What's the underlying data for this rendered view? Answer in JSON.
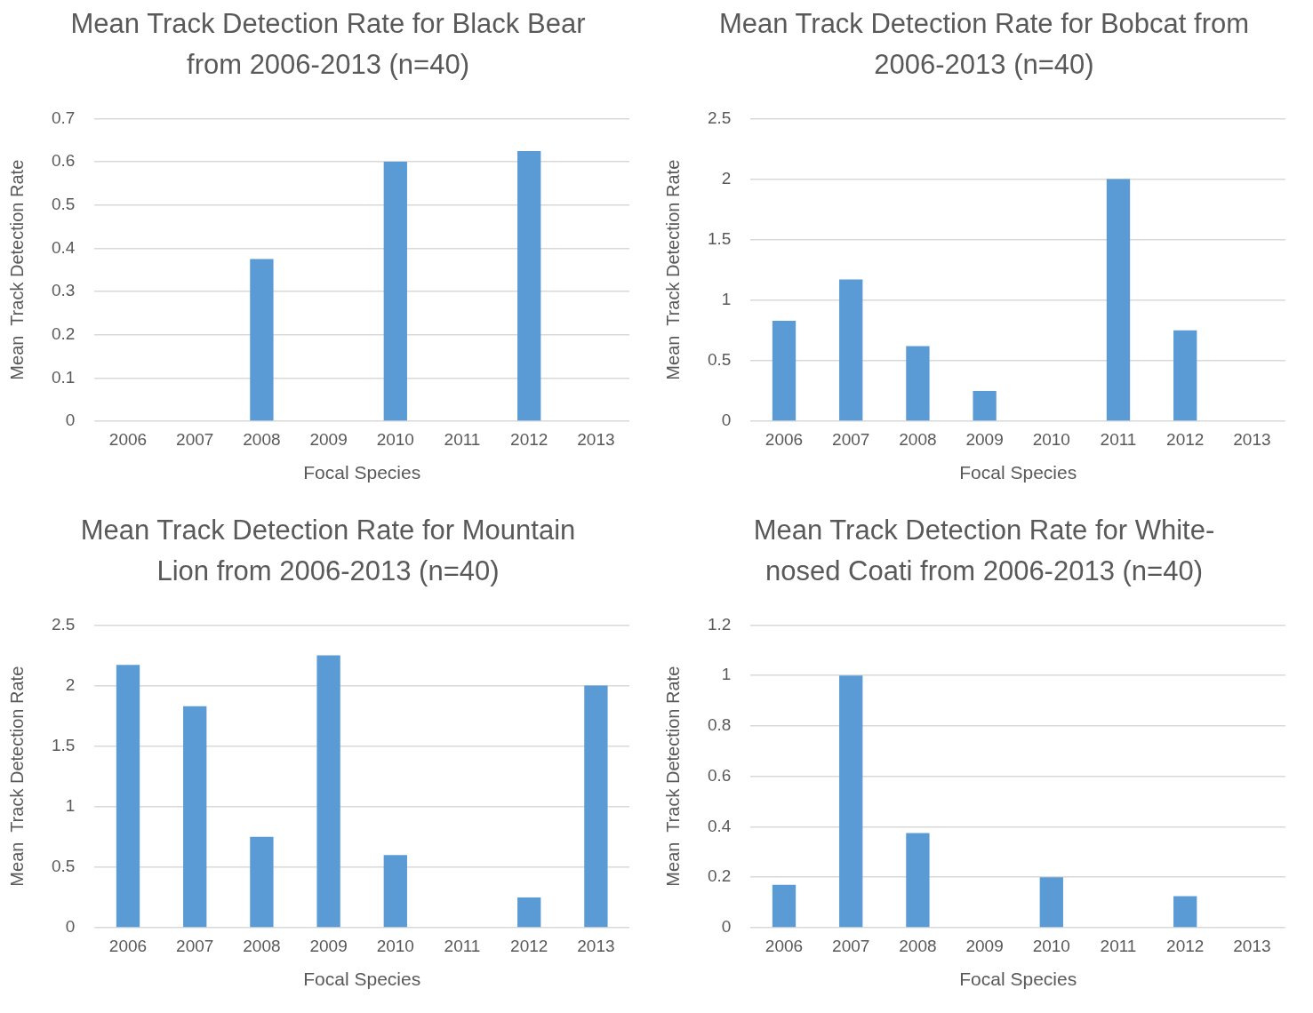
{
  "chart_data": [
    {
      "type": "bar",
      "title": "Mean Track Detection Rate for Black Bear from 2006-2013 (n=40)",
      "xlabel": "Focal Species",
      "ylabel": "Mean  Track Detection Rate",
      "categories": [
        "2006",
        "2007",
        "2008",
        "2009",
        "2010",
        "2011",
        "2012",
        "2013"
      ],
      "values": [
        0,
        0,
        0.375,
        0,
        0.6,
        0,
        0.625,
        0
      ],
      "color": "#5b9bd5",
      "ylim": [
        0,
        0.7
      ],
      "yticks": [
        0,
        0.1,
        0.2,
        0.3,
        0.4,
        0.5,
        0.6,
        0.7
      ],
      "grid": "y"
    },
    {
      "type": "bar",
      "title": "Mean Track Detection Rate for Bobcat from 2006-2013 (n=40)",
      "xlabel": "Focal Species",
      "ylabel": "Mean  Track Detection Rate",
      "categories": [
        "2006",
        "2007",
        "2008",
        "2009",
        "2010",
        "2011",
        "2012",
        "2013"
      ],
      "values": [
        0.83,
        1.17,
        0.62,
        0.25,
        0,
        2,
        0.75,
        0
      ],
      "color": "#5b9bd5",
      "ylim": [
        0,
        2.5
      ],
      "yticks": [
        0,
        0.5,
        1,
        1.5,
        2,
        2.5
      ],
      "grid": "y"
    },
    {
      "type": "bar",
      "title": "Mean Track Detection Rate for Mountain Lion from 2006-2013 (n=40)",
      "xlabel": "Focal Species",
      "ylabel": "Mean  Track Detection Rate",
      "categories": [
        "2006",
        "2007",
        "2008",
        "2009",
        "2010",
        "2011",
        "2012",
        "2013"
      ],
      "values": [
        2.17,
        1.83,
        0.75,
        2.25,
        0.6,
        0,
        0.25,
        2
      ],
      "color": "#5b9bd5",
      "ylim": [
        0,
        2.5
      ],
      "yticks": [
        0,
        0.5,
        1,
        1.5,
        2,
        2.5
      ],
      "grid": "y"
    },
    {
      "type": "bar",
      "title": "Mean Track Detection Rate for White-nosed Coati from 2006-2013 (n=40)",
      "xlabel": "Focal Species",
      "ylabel": "Mean  Track Detection Rate",
      "categories": [
        "2006",
        "2007",
        "2008",
        "2009",
        "2010",
        "2011",
        "2012",
        "2013"
      ],
      "values": [
        0.17,
        1,
        0.375,
        0,
        0.2,
        0,
        0.125,
        0
      ],
      "color": "#5b9bd5",
      "ylim": [
        0,
        1.2
      ],
      "yticks": [
        0,
        0.2,
        0.4,
        0.6,
        0.8,
        1,
        1.2
      ],
      "grid": "y"
    }
  ]
}
